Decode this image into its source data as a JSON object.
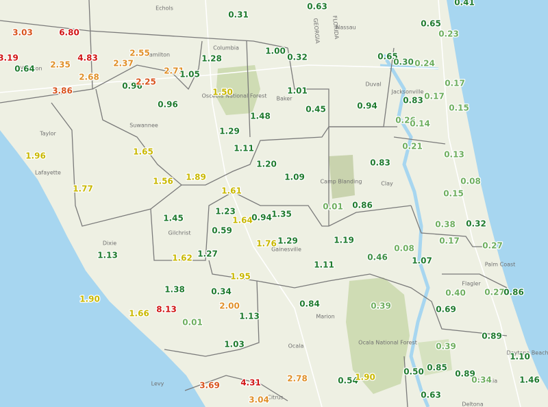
{
  "map": {
    "points": [
      {
        "label": "0.31",
        "color": "#1f7a2e"
      },
      {
        "label": "0.63",
        "color": "#1f7a2e"
      },
      {
        "label": "0.41",
        "color": "#1f7a2e"
      },
      {
        "label": "0.65",
        "color": "#1f7a2e"
      },
      {
        "label": "0.23",
        "color": "#6fae5f"
      },
      {
        "label": "3.03",
        "color": "#d8541e"
      },
      {
        "label": "6.80",
        "color": "#d01414"
      },
      {
        "label": "3.19",
        "color": "#d01414"
      },
      {
        "label": "4.83",
        "color": "#d01414"
      },
      {
        "label": "2.55",
        "color": "#e0902a"
      },
      {
        "label": "1.28",
        "color": "#1f7a2e"
      },
      {
        "label": "1.00",
        "color": "#1f7a2e"
      },
      {
        "label": "0.32",
        "color": "#1f7a2e"
      },
      {
        "label": "0.65",
        "color": "#1f7a2e"
      },
      {
        "label": "0.30",
        "color": "#3f8f45"
      },
      {
        "label": "0.24",
        "color": "#6fae5f"
      },
      {
        "label": "0.64",
        "color": "#1f7a2e"
      },
      {
        "label": "2.35",
        "color": "#e0902a"
      },
      {
        "label": "2.37",
        "color": "#e0902a"
      },
      {
        "label": "2.71",
        "color": "#e0902a"
      },
      {
        "label": "1.05",
        "color": "#1f7a2e"
      },
      {
        "label": "2.68",
        "color": "#e0902a"
      },
      {
        "label": "0.96",
        "color": "#1f7a2e"
      },
      {
        "label": "2.25",
        "color": "#d8541e"
      },
      {
        "label": "3.86",
        "color": "#d8541e"
      },
      {
        "label": "1.50",
        "color": "#c9b800"
      },
      {
        "label": "1.01",
        "color": "#1f7a2e"
      },
      {
        "label": "0.17",
        "color": "#6fae5f"
      },
      {
        "label": "0.17",
        "color": "#6fae5f"
      },
      {
        "label": "0.96",
        "color": "#1f7a2e"
      },
      {
        "label": "0.45",
        "color": "#1f7a2e"
      },
      {
        "label": "0.94",
        "color": "#1f7a2e"
      },
      {
        "label": "0.83",
        "color": "#1f7a2e"
      },
      {
        "label": "0.15",
        "color": "#6fae5f"
      },
      {
        "label": "1.48",
        "color": "#1f7a2e"
      },
      {
        "label": "0.26",
        "color": "#6fae5f"
      },
      {
        "label": "0.14",
        "color": "#6fae5f"
      },
      {
        "label": "1.29",
        "color": "#1f7a2e"
      },
      {
        "label": "1.65",
        "color": "#c9b800"
      },
      {
        "label": "1.96",
        "color": "#c9b800"
      },
      {
        "label": "1.11",
        "color": "#1f7a2e"
      },
      {
        "label": "0.21",
        "color": "#6fae5f"
      },
      {
        "label": "0.13",
        "color": "#6fae5f"
      },
      {
        "label": "1.20",
        "color": "#1f7a2e"
      },
      {
        "label": "0.83",
        "color": "#1f7a2e"
      },
      {
        "label": "1.09",
        "color": "#1f7a2e"
      },
      {
        "label": "0.08",
        "color": "#6fae5f"
      },
      {
        "label": "1.77",
        "color": "#c9b800"
      },
      {
        "label": "1.56",
        "color": "#c9b800"
      },
      {
        "label": "1.89",
        "color": "#c9b800"
      },
      {
        "label": "1.61",
        "color": "#c9b800"
      },
      {
        "label": "0.15",
        "color": "#6fae5f"
      },
      {
        "label": "0.01",
        "color": "#6fae5f"
      },
      {
        "label": "0.86",
        "color": "#1f7a2e"
      },
      {
        "label": "1.45",
        "color": "#1f7a2e"
      },
      {
        "label": "1.23",
        "color": "#1f7a2e"
      },
      {
        "label": "1.64",
        "color": "#c9b800"
      },
      {
        "label": "0.94",
        "color": "#1f7a2e"
      },
      {
        "label": "1.35",
        "color": "#1f7a2e"
      },
      {
        "label": "0.38",
        "color": "#6fae5f"
      },
      {
        "label": "0.32",
        "color": "#1f7a2e"
      },
      {
        "label": "0.59",
        "color": "#1f7a2e"
      },
      {
        "label": "1.76",
        "color": "#c9b800"
      },
      {
        "label": "1.29",
        "color": "#1f7a2e"
      },
      {
        "label": "1.19",
        "color": "#1f7a2e"
      },
      {
        "label": "0.17",
        "color": "#6fae5f"
      },
      {
        "label": "0.27",
        "color": "#6fae5f"
      },
      {
        "label": "0.08",
        "color": "#6fae5f"
      },
      {
        "label": "1.13",
        "color": "#1f7a2e"
      },
      {
        "label": "1.62",
        "color": "#c9b800"
      },
      {
        "label": "1.27",
        "color": "#1f7a2e"
      },
      {
        "label": "0.46",
        "color": "#3f8f45"
      },
      {
        "label": "1.07",
        "color": "#1f7a2e"
      },
      {
        "label": "1.11",
        "color": "#1f7a2e"
      },
      {
        "label": "1.95",
        "color": "#c9b800"
      },
      {
        "label": "1.38",
        "color": "#1f7a2e"
      },
      {
        "label": "0.34",
        "color": "#1f7a2e"
      },
      {
        "label": "0.84",
        "color": "#1f7a2e"
      },
      {
        "label": "0.39",
        "color": "#6fae5f"
      },
      {
        "label": "0.40",
        "color": "#6fae5f"
      },
      {
        "label": "0.27",
        "color": "#6fae5f"
      },
      {
        "label": "0.86",
        "color": "#1f7a2e"
      },
      {
        "label": "1.90",
        "color": "#c9b800"
      },
      {
        "label": "1.66",
        "color": "#c9b800"
      },
      {
        "label": "8.13",
        "color": "#d01414"
      },
      {
        "label": "2.00",
        "color": "#e0902a"
      },
      {
        "label": "0.69",
        "color": "#1f7a2e"
      },
      {
        "label": "1.13",
        "color": "#1f7a2e"
      },
      {
        "label": "0.01",
        "color": "#6fae5f"
      },
      {
        "label": "0.89",
        "color": "#1f7a2e"
      },
      {
        "label": "1.03",
        "color": "#1f7a2e"
      },
      {
        "label": "0.39",
        "color": "#6fae5f"
      },
      {
        "label": "1.10",
        "color": "#1f7a2e"
      },
      {
        "label": "0.85",
        "color": "#1f7a2e"
      },
      {
        "label": "0.50",
        "color": "#1f7a2e"
      },
      {
        "label": "0.89",
        "color": "#1f7a2e"
      },
      {
        "label": "0.34",
        "color": "#6fae5f"
      },
      {
        "label": "1.46",
        "color": "#1f7a2e"
      },
      {
        "label": "3.69",
        "color": "#d8541e"
      },
      {
        "label": "4.31",
        "color": "#d01414"
      },
      {
        "label": "2.78",
        "color": "#e0902a"
      },
      {
        "label": "0.54",
        "color": "#1f7a2e"
      },
      {
        "label": "1.90",
        "color": "#c9b800"
      },
      {
        "label": "0.63",
        "color": "#1f7a2e"
      },
      {
        "label": "3.04",
        "color": "#e0902a"
      }
    ],
    "places": [
      "Echols",
      "Nassau",
      "Columbia",
      "Baker",
      "Duval",
      "Jacksonville",
      "Suwannee",
      "Taylor",
      "Lafayette",
      "Clay",
      "Gilchrist",
      "Dixie",
      "Gainesville",
      "Marion",
      "Ocala",
      "Flagler",
      "Palm Coast",
      "Citrus",
      "Deltona",
      "Daytona Beach",
      "Osceola National Forest",
      "Ocala National Forest",
      "Camp Blanding",
      "Hamilton",
      "Madison",
      "GEORGIA",
      "FLORIDA",
      "Levy",
      "Volusia"
    ]
  }
}
